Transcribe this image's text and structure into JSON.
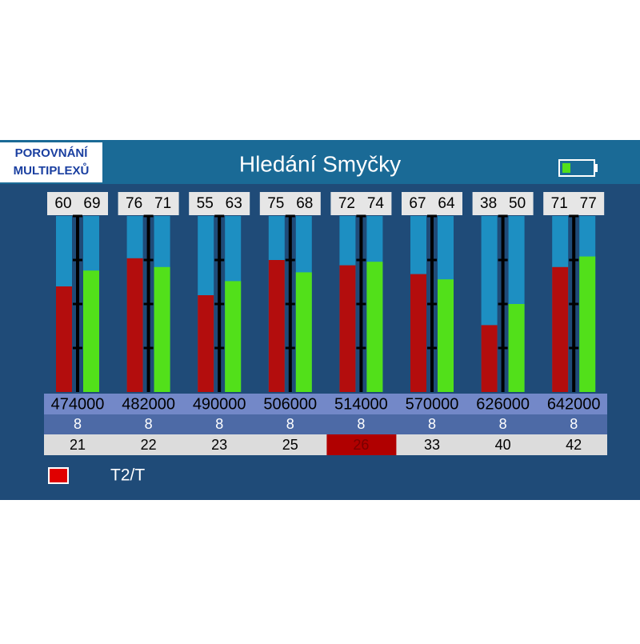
{
  "badge": [
    "POROVNÁNÍ",
    "MULTIPLEXŮ"
  ],
  "title": "Hledání Smyčky",
  "chart_data": {
    "type": "bar",
    "categories": [
      "474000",
      "482000",
      "490000",
      "506000",
      "514000",
      "570000",
      "626000",
      "642000"
    ],
    "series": [
      {
        "color": "#b30d0d",
        "values": [
          60,
          76,
          55,
          75,
          72,
          67,
          38,
          71
        ]
      },
      {
        "color": "#52e01a",
        "values": [
          69,
          71,
          63,
          68,
          74,
          64,
          50,
          77
        ]
      }
    ],
    "ylim": [
      0,
      100
    ],
    "yticks": [
      25,
      50,
      75,
      100
    ],
    "bandwidth": [
      8,
      8,
      8,
      8,
      8,
      8,
      8,
      8
    ],
    "channels": [
      21,
      22,
      23,
      25,
      26,
      33,
      40,
      42
    ],
    "highlighted_channel": 26
  },
  "legend": {
    "label": "T2/T",
    "color": "#e00000"
  }
}
